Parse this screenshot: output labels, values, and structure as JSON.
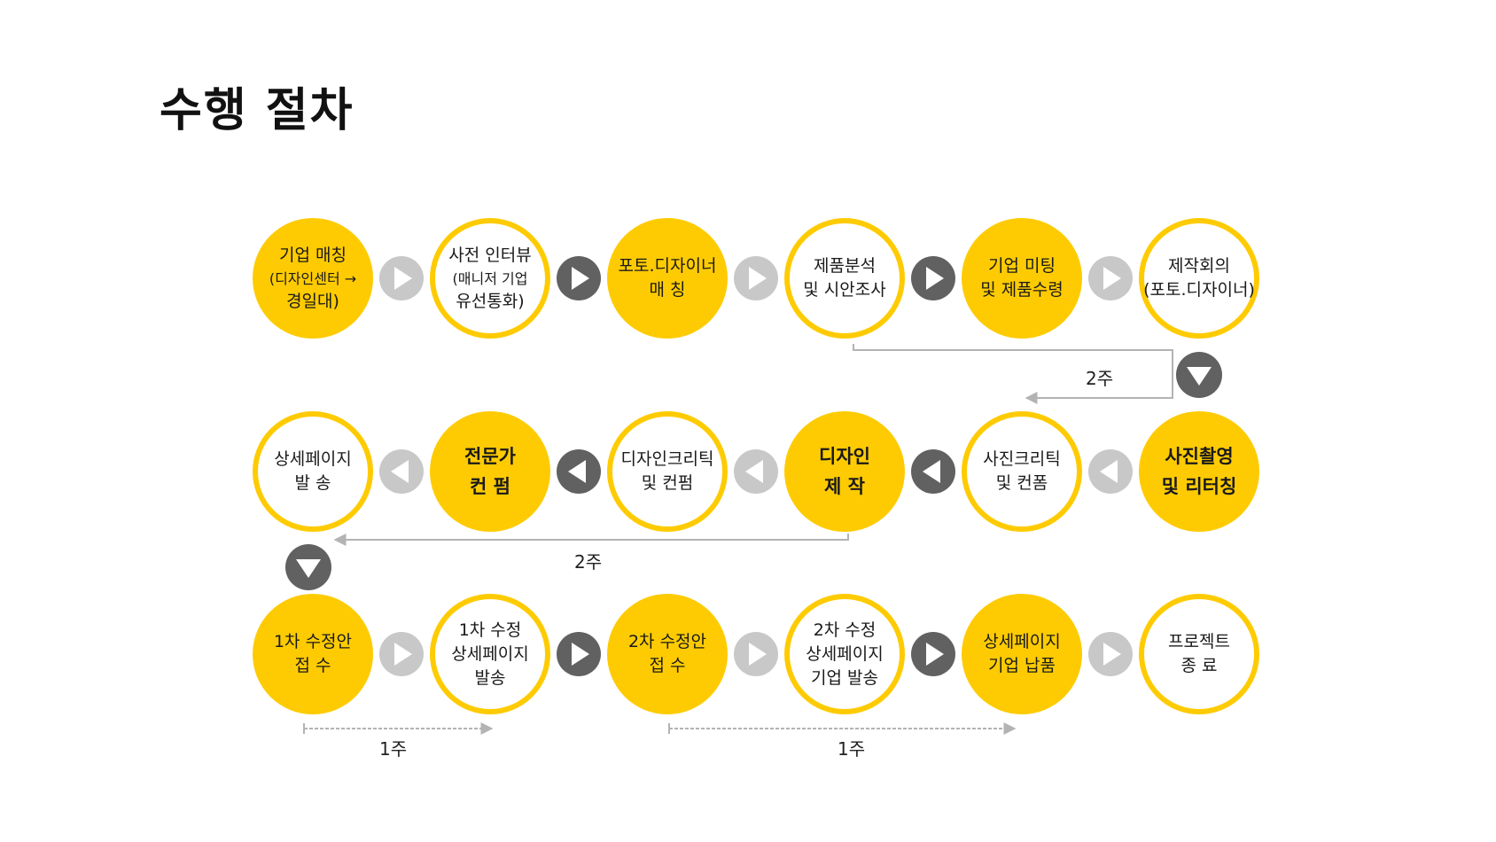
{
  "title": "수행 절차",
  "rows": [
    {
      "steps": [
        {
          "lines": [
            "기업 매칭",
            "(디자인센터 →",
            "경일대)"
          ],
          "style": "filled"
        },
        {
          "lines": [
            "사전 인터뷰",
            "(매니저 기업",
            "유선통화)"
          ],
          "style": "outline"
        },
        {
          "lines": [
            "포토.디자이너",
            "매 칭"
          ],
          "style": "filled"
        },
        {
          "lines": [
            "제품분석",
            "및 시안조사"
          ],
          "style": "outline"
        },
        {
          "lines": [
            "기업 미팅",
            "및 제품수령"
          ],
          "style": "filled"
        },
        {
          "lines": [
            "제작회의",
            "(포토.디자이너)"
          ],
          "style": "outline"
        }
      ]
    },
    {
      "steps": [
        {
          "lines": [
            "사진촬영",
            "및 리터칭"
          ],
          "style": "filled"
        },
        {
          "lines": [
            "사진크리틱",
            "및 컨폼"
          ],
          "style": "outline"
        },
        {
          "lines": [
            "디자인",
            "제 작"
          ],
          "style": "filled"
        },
        {
          "lines": [
            "디자인크리틱",
            "및 컨펌"
          ],
          "style": "outline"
        },
        {
          "lines": [
            "전문가",
            "컨 펌"
          ],
          "style": "filled"
        },
        {
          "lines": [
            "상세페이지",
            "발 송"
          ],
          "style": "outline"
        }
      ]
    },
    {
      "steps": [
        {
          "lines": [
            "1차 수정안",
            "접 수"
          ],
          "style": "filled"
        },
        {
          "lines": [
            "1차 수정",
            "상세페이지",
            "발송"
          ],
          "style": "outline"
        },
        {
          "lines": [
            "2차 수정안",
            "접 수"
          ],
          "style": "filled"
        },
        {
          "lines": [
            "2차 수정",
            "상세페이지",
            "기업 발송"
          ],
          "style": "outline"
        },
        {
          "lines": [
            "상세페이지",
            "기업 납품"
          ],
          "style": "filled"
        },
        {
          "lines": [
            "프로젝트",
            "종 료"
          ],
          "style": "outline"
        }
      ]
    }
  ],
  "durations": [
    "2주",
    "2주",
    "1주",
    "1주"
  ],
  "colors": {
    "accent": "#fecb02",
    "arrow_light": "#c8c8c8",
    "arrow_dark": "#616161",
    "line": "#b3b3b3"
  },
  "icons": {
    "next": "play-arrow-icon",
    "prev": "reverse-arrow-icon",
    "down": "down-arrow-icon"
  }
}
